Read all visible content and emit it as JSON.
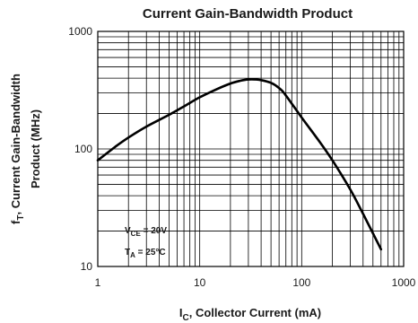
{
  "chart_data": {
    "type": "line",
    "title": "Current Gain-Bandwidth Product",
    "xlabel": {
      "main": "I",
      "sub": "C",
      "rest": ", Collector Current (mA)"
    },
    "ylabel": {
      "line1_main": "f",
      "line1_sub": "T",
      "line1_rest": ", Current Gain-Bandwidth",
      "line2": "Product (MHz)"
    },
    "xscale": "log",
    "yscale": "log",
    "xlim": [
      1,
      1000
    ],
    "ylim": [
      10,
      1000
    ],
    "grid": true,
    "x_ticks": [
      "1",
      "10",
      "100",
      "1000"
    ],
    "y_ticks": [
      "10",
      "100",
      "1000"
    ],
    "annotations": [
      {
        "main": "V",
        "sub": "CE",
        "rest": " = 20V"
      },
      {
        "main": "T",
        "sub": "A",
        "rest": " = 25°C"
      }
    ],
    "series": [
      {
        "x": [
          1,
          1.5,
          2,
          3,
          5,
          7,
          10,
          15,
          20,
          25,
          30,
          35,
          40,
          50,
          60,
          70,
          100,
          150,
          200,
          300,
          400,
          600
        ],
        "y": [
          80,
          105,
          125,
          155,
          195,
          230,
          275,
          325,
          360,
          380,
          390,
          390,
          385,
          365,
          330,
          285,
          185,
          115,
          80,
          45,
          28,
          14
        ]
      }
    ]
  }
}
